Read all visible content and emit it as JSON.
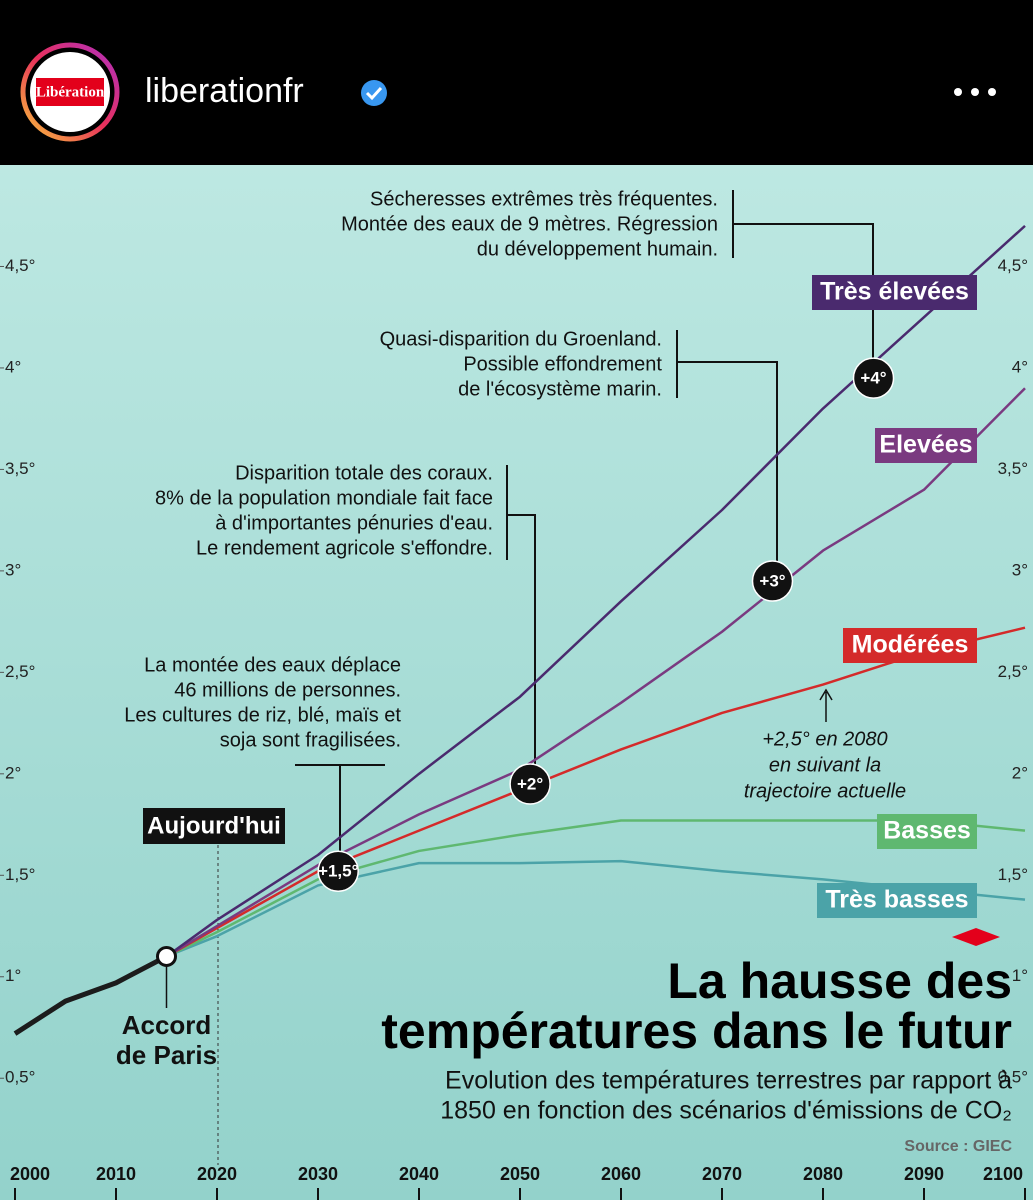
{
  "header": {
    "logo": "Libération",
    "username": "liberationfr"
  },
  "chart_data": {
    "type": "line",
    "title": [
      "La hausse des",
      "températures dans le futur"
    ],
    "subtitle": [
      "Evolution des températures terrestres par rapport à",
      "1850 en fonction des scénarios d'émissions de CO₂"
    ],
    "source": "Source : GIEC",
    "x": [
      2000,
      2005,
      2010,
      2015,
      2020,
      2030,
      2040,
      2050,
      2060,
      2070,
      2080,
      2090,
      2100
    ],
    "xlim": [
      2000,
      2100
    ],
    "xticks": [
      2000,
      2010,
      2020,
      2030,
      2040,
      2050,
      2060,
      2070,
      2080,
      2090,
      2100
    ],
    "ylim": [
      -0.1,
      5.0
    ],
    "yticks": [
      {
        "value": 0.5,
        "label": "0,5°"
      },
      {
        "value": 1,
        "label": "1°"
      },
      {
        "value": 1.5,
        "label": "1,5°"
      },
      {
        "value": 2,
        "label": "2°"
      },
      {
        "value": 2.5,
        "label": "2,5°"
      },
      {
        "value": 3,
        "label": "3°"
      },
      {
        "value": 3.5,
        "label": "3,5°"
      },
      {
        "value": 4,
        "label": "4°"
      },
      {
        "value": 4.5,
        "label": "4,5°"
      }
    ],
    "series": [
      {
        "color": "#1c1c1c",
        "values": [
          0.72,
          0.88,
          0.97,
          1.1,
          null,
          null,
          null,
          null,
          null,
          null,
          null,
          null,
          null
        ]
      },
      {
        "name": "Très basses",
        "color": "#4ba3a8",
        "values": [
          null,
          null,
          null,
          1.1,
          1.2,
          1.45,
          1.56,
          1.56,
          1.57,
          1.52,
          1.48,
          1.43,
          1.38
        ]
      },
      {
        "name": "Basses",
        "color": "#5fb870",
        "values": [
          null,
          null,
          null,
          1.1,
          1.22,
          1.48,
          1.62,
          1.7,
          1.77,
          1.77,
          1.77,
          1.77,
          1.72
        ]
      },
      {
        "name": "Modérées",
        "color": "#d42a2a",
        "values": [
          null,
          null,
          null,
          1.1,
          1.24,
          1.52,
          1.72,
          1.92,
          2.12,
          2.3,
          2.44,
          2.6,
          2.72
        ]
      },
      {
        "name": "Elevées",
        "color": "#7a3a80",
        "values": [
          null,
          null,
          null,
          1.1,
          1.25,
          1.55,
          1.8,
          2.02,
          2.35,
          2.7,
          3.1,
          3.4,
          3.9
        ]
      },
      {
        "name": "Très élevées",
        "color": "#4a2a6e",
        "values": [
          null,
          null,
          null,
          1.1,
          1.28,
          1.6,
          2.0,
          2.38,
          2.85,
          3.3,
          3.8,
          4.25,
          4.7
        ]
      }
    ],
    "markers": [
      {
        "x": 2032,
        "y": 1.52,
        "label": "+1,5°"
      },
      {
        "x": 2051,
        "y": 1.95,
        "label": "+2°"
      },
      {
        "x": 2075,
        "y": 2.95,
        "label": "+3°"
      },
      {
        "x": 2085,
        "y": 3.95,
        "label": "+4°"
      }
    ],
    "annotations": [
      [
        "Sécheresses extrêmes très fréquentes.",
        "Montée des eaux de 9 mètres. Régression",
        "du développement humain."
      ],
      [
        "Quasi-disparition du Groenland.",
        "Possible effondrement",
        "de l'écosystème marin."
      ],
      [
        "Disparition totale des coraux.",
        "8% de la population mondiale fait face",
        "à d'importantes pénuries d'eau.",
        "Le rendement agricole s'effondre."
      ],
      [
        "La montée des eaux déplace",
        "46 millions de personnes.",
        "Les cultures de riz, blé, maïs et",
        "soja sont fragilisées."
      ],
      [
        "+2,5° en 2080",
        "en suivant la",
        "trajectoire actuelle"
      ]
    ],
    "today_label": "Aujourd'hui",
    "paris_label": [
      "Accord",
      "de Paris"
    ]
  }
}
